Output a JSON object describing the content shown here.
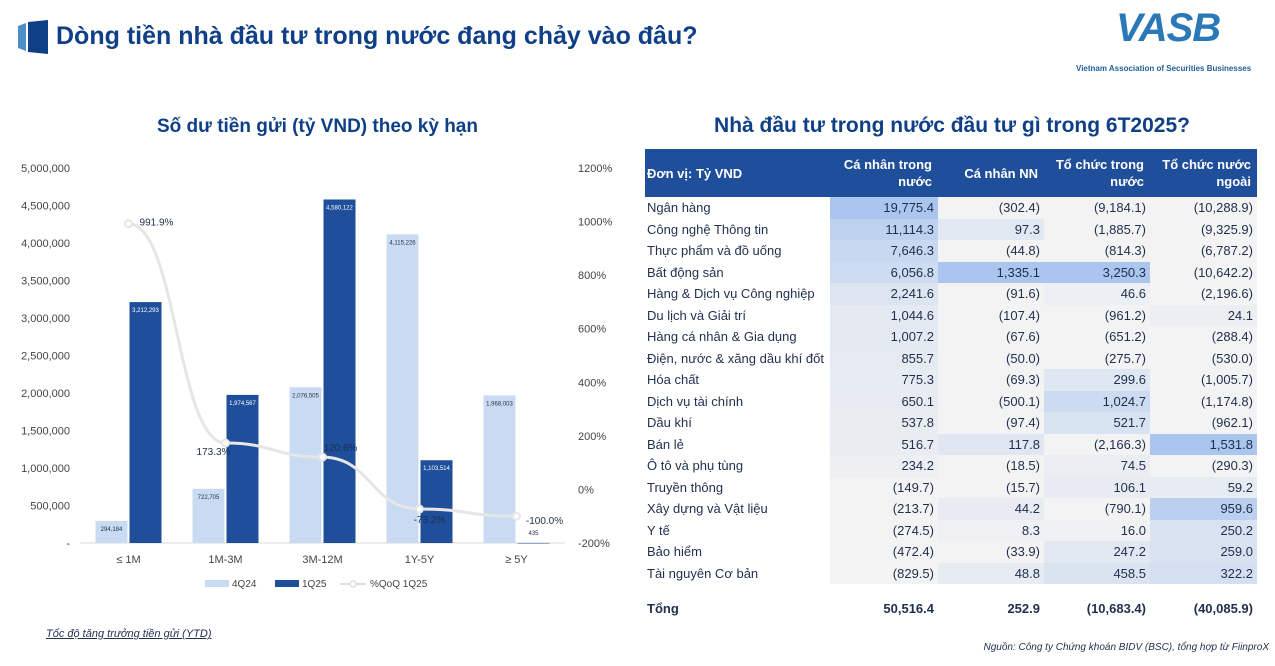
{
  "header": {
    "title": "Dòng tiền nhà đầu tư trong nước đang chảy vào đâu?",
    "brand_name": "VASB",
    "brand_tagline": "Vietnam Association of Securities Businesses"
  },
  "chart_data": {
    "type": "bar",
    "title": "Số dư tiền gửi (tỷ VND) theo kỳ hạn",
    "categories": [
      "≤ 1M",
      "1M-3M",
      "3M-12M",
      "1Y-5Y",
      "≥ 5Y"
    ],
    "series": [
      {
        "name": "4Q24",
        "type": "bar",
        "axis": "left",
        "values": [
          294184,
          722705,
          2076505,
          4115226,
          1968003
        ]
      },
      {
        "name": "1Q25",
        "type": "bar",
        "axis": "left",
        "values": [
          3212293,
          1974567,
          4580122,
          1103514,
          435
        ]
      },
      {
        "name": "%QoQ 1Q25",
        "type": "line",
        "axis": "right",
        "values": [
          991.9,
          173.3,
          120.6,
          -73.2,
          -100.0
        ]
      }
    ],
    "bar_labels": {
      "4Q24": [
        "294,184",
        "722,705",
        "2,076,505",
        "4,115,226",
        "1,968,003"
      ],
      "1Q25": [
        "3,212,293",
        "1,974,567",
        "4,580,122",
        "1,103,514",
        "435"
      ]
    },
    "line_labels": [
      "991.9%",
      "173.3%",
      "120.6%",
      "-73.2%",
      "-100.0%"
    ],
    "ylim": [
      0,
      5000000
    ],
    "y_ticks": [
      "-",
      "500,000",
      "1,000,000",
      "1,500,000",
      "2,000,000",
      "2,500,000",
      "3,000,000",
      "3,500,000",
      "4,000,000",
      "4,500,000",
      "5,000,000"
    ],
    "y2lim": [
      -200,
      1200
    ],
    "y2_ticks": [
      "-200%",
      "0%",
      "200%",
      "400%",
      "600%",
      "800%",
      "1000%",
      "1200%"
    ],
    "legend": [
      "4Q24",
      "1Q25",
      "%QoQ 1Q25"
    ],
    "legend_position": "bottom",
    "grid": false,
    "colors": {
      "4Q24": "#c9dbf2",
      "1Q25": "#1f4e9a",
      "line": "#e6e6e6"
    }
  },
  "chart_footnote": "Tốc độ tăng trưởng tiền gửi (YTD)",
  "table": {
    "title": "Nhà đầu tư trong nước đầu tư gì trong 6T2025?",
    "headers": [
      "Đơn vị: Tỷ VND",
      "Cá nhân trong nước",
      "Cá nhân NN",
      "Tổ chức trong nước",
      "Tổ chức nước ngoài"
    ],
    "rows": [
      {
        "label": "Ngân hàng",
        "values": [
          "19,775.4",
          "(302.4)",
          "(9,184.1)",
          "(10,288.9)"
        ],
        "nums": [
          19775.4,
          -302.4,
          -9184.1,
          -10288.9
        ]
      },
      {
        "label": "Công nghệ Thông tin",
        "values": [
          "11,114.3",
          "97.3",
          "(1,885.7)",
          "(9,325.9)"
        ],
        "nums": [
          11114.3,
          97.3,
          -1885.7,
          -9325.9
        ]
      },
      {
        "label": "Thực phẩm và đồ uống",
        "values": [
          "7,646.3",
          "(44.8)",
          "(814.3)",
          "(6,787.2)"
        ],
        "nums": [
          7646.3,
          -44.8,
          -814.3,
          -6787.2
        ]
      },
      {
        "label": "Bất động sản",
        "values": [
          "6,056.8",
          "1,335.1",
          "3,250.3",
          "(10,642.2)"
        ],
        "nums": [
          6056.8,
          1335.1,
          3250.3,
          -10642.2
        ]
      },
      {
        "label": "Hàng & Dịch vụ Công nghiệp",
        "values": [
          "2,241.6",
          "(91.6)",
          "46.6",
          "(2,196.6)"
        ],
        "nums": [
          2241.6,
          -91.6,
          46.6,
          -2196.6
        ]
      },
      {
        "label": "Du lịch và Giải trí",
        "values": [
          "1,044.6",
          "(107.4)",
          "(961.2)",
          "24.1"
        ],
        "nums": [
          1044.6,
          -107.4,
          -961.2,
          24.1
        ]
      },
      {
        "label": "Hàng cá nhân & Gia dụng",
        "values": [
          "1,007.2",
          "(67.6)",
          "(651.2)",
          "(288.4)"
        ],
        "nums": [
          1007.2,
          -67.6,
          -651.2,
          -288.4
        ]
      },
      {
        "label": "Điện, nước & xăng dầu khí đốt",
        "values": [
          "855.7",
          "(50.0)",
          "(275.7)",
          "(530.0)"
        ],
        "nums": [
          855.7,
          -50.0,
          -275.7,
          -530.0
        ]
      },
      {
        "label": "Hóa chất",
        "values": [
          "775.3",
          "(69.3)",
          "299.6",
          "(1,005.7)"
        ],
        "nums": [
          775.3,
          -69.3,
          299.6,
          -1005.7
        ]
      },
      {
        "label": "Dịch vụ tài chính",
        "values": [
          "650.1",
          "(500.1)",
          "1,024.7",
          "(1,174.8)"
        ],
        "nums": [
          650.1,
          -500.1,
          1024.7,
          -1174.8
        ]
      },
      {
        "label": "Dầu khí",
        "values": [
          "537.8",
          "(97.4)",
          "521.7",
          "(962.1)"
        ],
        "nums": [
          537.8,
          -97.4,
          521.7,
          -962.1
        ]
      },
      {
        "label": "Bán lẻ",
        "values": [
          "516.7",
          "117.8",
          "(2,166.3)",
          "1,531.8"
        ],
        "nums": [
          516.7,
          117.8,
          -2166.3,
          1531.8
        ]
      },
      {
        "label": "Ô tô và phụ tùng",
        "values": [
          "234.2",
          "(18.5)",
          "74.5",
          "(290.3)"
        ],
        "nums": [
          234.2,
          -18.5,
          74.5,
          -290.3
        ]
      },
      {
        "label": "Truyền thông",
        "values": [
          "(149.7)",
          "(15.7)",
          "106.1",
          "59.2"
        ],
        "nums": [
          -149.7,
          -15.7,
          106.1,
          59.2
        ]
      },
      {
        "label": "Xây dựng và Vật liệu",
        "values": [
          "(213.7)",
          "44.2",
          "(790.1)",
          "959.6"
        ],
        "nums": [
          -213.7,
          44.2,
          -790.1,
          959.6
        ]
      },
      {
        "label": "Y tế",
        "values": [
          "(274.5)",
          "8.3",
          "16.0",
          "250.2"
        ],
        "nums": [
          -274.5,
          8.3,
          16.0,
          250.2
        ]
      },
      {
        "label": "Bảo hiểm",
        "values": [
          "(472.4)",
          "(33.9)",
          "247.2",
          "259.0"
        ],
        "nums": [
          -472.4,
          -33.9,
          247.2,
          259.0
        ]
      },
      {
        "label": "Tài nguyên Cơ bản",
        "values": [
          "(829.5)",
          "48.8",
          "458.5",
          "322.2"
        ],
        "nums": [
          -829.5,
          48.8,
          458.5,
          322.2
        ]
      }
    ],
    "total": {
      "label": "Tổng",
      "values": [
        "50,516.4",
        "252.9",
        "(10,683.4)",
        "(40,085.9)"
      ]
    },
    "colors": {
      "header": "#1f4e9a",
      "heat_low": "#f3f3f3",
      "heat_high": "#aac6ee"
    }
  },
  "source_note": "Nguồn: Công ty Chứng khoán BIDV (BSC), tổng hợp từ FiinproX"
}
